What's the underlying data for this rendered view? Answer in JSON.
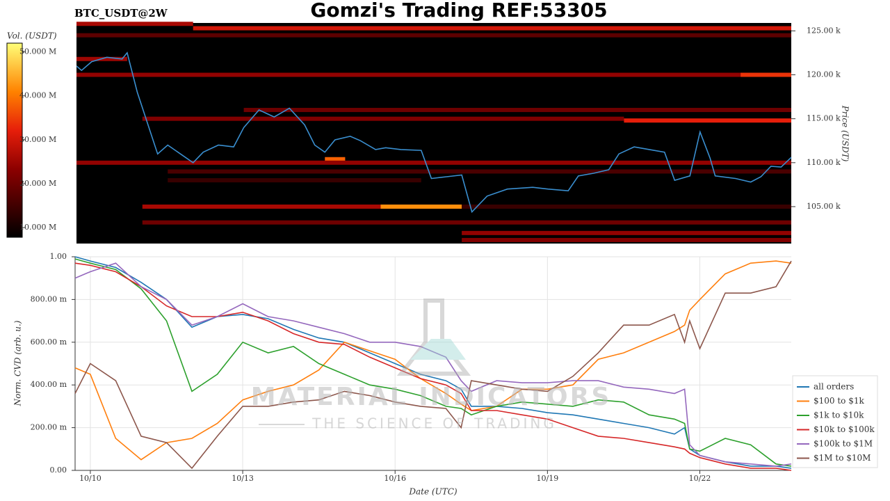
{
  "chart_data": [
    {
      "type": "heatmap",
      "title": "Gomzi's Trading REF:53305",
      "subtitle": "BTC_USDT@2W",
      "ylabel": "Price (USDT)",
      "colorbar_label": "Vol. (USDT)",
      "xlim": [
        9.7,
        23.8
      ],
      "ylim": [
        100800,
        125900
      ],
      "yticks": [
        {
          "value": 105000,
          "label": "105.00 k"
        },
        {
          "value": 110000,
          "label": "110.00 k"
        },
        {
          "value": 115000,
          "label": "115.00 k"
        },
        {
          "value": 120000,
          "label": "120.00 k"
        },
        {
          "value": 125000,
          "label": "125.00 k"
        }
      ],
      "clim": [
        7800000,
        52000000
      ],
      "cticks": [
        {
          "value": 10000000,
          "label": "10.000 M"
        },
        {
          "value": 20000000,
          "label": "20.000 M"
        },
        {
          "value": 30000000,
          "label": "30.000 M"
        },
        {
          "value": 40000000,
          "label": "40.000 M"
        },
        {
          "value": 50000000,
          "label": "50.000 M"
        }
      ],
      "bands": [
        {
          "price": 125800,
          "x": [
            9.7,
            12.0
          ],
          "volume": 26000000
        },
        {
          "price": 125300,
          "x": [
            12.0,
            23.8
          ],
          "volume": 30000000
        },
        {
          "price": 124500,
          "x": [
            9.7,
            23.8
          ],
          "volume": 18000000
        },
        {
          "price": 121800,
          "x": [
            9.7,
            10.7
          ],
          "volume": 25000000
        },
        {
          "price": 120000,
          "x": [
            9.7,
            22.8
          ],
          "volume": 24000000
        },
        {
          "price": 120000,
          "x": [
            22.8,
            23.8
          ],
          "volume": 34000000
        },
        {
          "price": 116000,
          "x": [
            13.0,
            23.8
          ],
          "volume": 20000000
        },
        {
          "price": 115000,
          "x": [
            11.0,
            20.5
          ],
          "volume": 22000000
        },
        {
          "price": 114800,
          "x": [
            20.5,
            23.8
          ],
          "volume": 32000000
        },
        {
          "price": 110400,
          "x": [
            14.6,
            15.0
          ],
          "volume": 38000000
        },
        {
          "price": 110000,
          "x": [
            9.7,
            23.8
          ],
          "volume": 24000000
        },
        {
          "price": 109000,
          "x": [
            11.5,
            23.8
          ],
          "volume": 16000000
        },
        {
          "price": 108000,
          "x": [
            11.5,
            16.5
          ],
          "volume": 14000000
        },
        {
          "price": 105000,
          "x": [
            11.0,
            15.7
          ],
          "volume": 26000000
        },
        {
          "price": 105000,
          "x": [
            15.7,
            17.3
          ],
          "volume": 42000000
        },
        {
          "price": 105000,
          "x": [
            17.3,
            23.8
          ],
          "volume": 14000000
        },
        {
          "price": 103200,
          "x": [
            11.0,
            23.8
          ],
          "volume": 20000000
        },
        {
          "price": 102000,
          "x": [
            17.3,
            23.8
          ],
          "volume": 24000000
        },
        {
          "price": 101200,
          "x": [
            17.3,
            23.8
          ],
          "volume": 22000000
        }
      ],
      "line": {
        "color": "#3a8fd0",
        "x": [
          9.7,
          9.8,
          10.0,
          10.3,
          10.6,
          10.7,
          10.9,
          11.1,
          11.3,
          11.5,
          11.8,
          12.0,
          12.2,
          12.5,
          12.8,
          13.0,
          13.3,
          13.6,
          13.9,
          14.2,
          14.4,
          14.6,
          14.8,
          15.1,
          15.3,
          15.6,
          15.8,
          16.1,
          16.5,
          16.7,
          17.0,
          17.3,
          17.5,
          17.8,
          18.2,
          18.7,
          19.0,
          19.4,
          19.6,
          19.9,
          20.2,
          20.4,
          20.7,
          21.0,
          21.3,
          21.5,
          21.8,
          22.0,
          22.2,
          22.3,
          22.7,
          23.0,
          23.2,
          23.4,
          23.6,
          23.8
        ],
        "values": [
          121000,
          120500,
          121500,
          122000,
          121800,
          122500,
          118000,
          114500,
          111000,
          112000,
          110800,
          110000,
          111200,
          112000,
          111800,
          114000,
          116000,
          115200,
          116200,
          114300,
          112000,
          111200,
          112600,
          113000,
          112500,
          111500,
          111700,
          111500,
          111400,
          108200,
          108400,
          108600,
          104400,
          106200,
          107000,
          107200,
          107000,
          106800,
          108500,
          108800,
          109200,
          111000,
          111800,
          111500,
          111200,
          108000,
          108500,
          113500,
          110500,
          108500,
          108200,
          107800,
          108400,
          109600,
          109500,
          110600
        ]
      }
    },
    {
      "type": "line",
      "xlabel": "Date (UTC)",
      "ylabel": "Norm. CVD (arb. u.)",
      "grid": true,
      "watermark": [
        "MATERIAL INDICATORS",
        "THE SCIENCE OF TRADING"
      ],
      "xlim": [
        9.7,
        23.8
      ],
      "ylim": [
        0,
        1
      ],
      "xticks": [
        {
          "value": 10,
          "label": "10/10"
        },
        {
          "value": 13,
          "label": "10/13"
        },
        {
          "value": 16,
          "label": "10/16"
        },
        {
          "value": 19,
          "label": "10/19"
        },
        {
          "value": 22,
          "label": "10/22"
        }
      ],
      "yticks": [
        {
          "value": 0,
          "label": "0.00"
        },
        {
          "value": 0.2,
          "label": "200.00 m"
        },
        {
          "value": 0.4,
          "label": "400.00 m"
        },
        {
          "value": 0.6,
          "label": "600.00 m"
        },
        {
          "value": 0.8,
          "label": "800.00 m"
        },
        {
          "value": 1,
          "label": "1.00"
        }
      ],
      "x": [
        9.7,
        10.0,
        10.5,
        11.0,
        11.5,
        12.0,
        12.5,
        13.0,
        13.5,
        14.0,
        14.5,
        15.0,
        15.5,
        16.0,
        16.5,
        17.0,
        17.3,
        17.5,
        18.0,
        18.5,
        19.0,
        19.5,
        20.0,
        20.5,
        21.0,
        21.5,
        21.7,
        21.8,
        22.0,
        22.5,
        23.0,
        23.5,
        23.8
      ],
      "series": [
        {
          "name": "all orders",
          "color": "#1f77b4",
          "values": [
            1.0,
            0.98,
            0.95,
            0.88,
            0.8,
            0.67,
            0.72,
            0.73,
            0.71,
            0.66,
            0.62,
            0.6,
            0.55,
            0.5,
            0.45,
            0.42,
            0.38,
            0.3,
            0.3,
            0.29,
            0.27,
            0.26,
            0.24,
            0.22,
            0.2,
            0.17,
            0.2,
            0.1,
            0.07,
            0.04,
            0.02,
            0.02,
            0.01
          ]
        },
        {
          "name": "$100 to $1k",
          "color": "#ff7f0e",
          "values": [
            0.48,
            0.45,
            0.15,
            0.05,
            0.13,
            0.15,
            0.22,
            0.33,
            0.37,
            0.4,
            0.47,
            0.6,
            0.56,
            0.52,
            0.43,
            0.36,
            0.31,
            0.28,
            0.3,
            0.38,
            0.38,
            0.4,
            0.52,
            0.55,
            0.6,
            0.65,
            0.68,
            0.75,
            0.8,
            0.92,
            0.97,
            0.98,
            0.97
          ]
        },
        {
          "name": "$1k to $10k",
          "color": "#2ca02c",
          "values": [
            0.99,
            0.97,
            0.94,
            0.85,
            0.7,
            0.37,
            0.45,
            0.6,
            0.55,
            0.58,
            0.5,
            0.45,
            0.4,
            0.38,
            0.35,
            0.3,
            0.29,
            0.26,
            0.3,
            0.32,
            0.31,
            0.3,
            0.33,
            0.32,
            0.26,
            0.24,
            0.22,
            0.1,
            0.09,
            0.15,
            0.12,
            0.03,
            0.02
          ]
        },
        {
          "name": "$10k to $100k",
          "color": "#d62728",
          "values": [
            0.97,
            0.96,
            0.93,
            0.86,
            0.77,
            0.72,
            0.72,
            0.74,
            0.7,
            0.64,
            0.6,
            0.59,
            0.53,
            0.48,
            0.43,
            0.4,
            0.36,
            0.28,
            0.28,
            0.26,
            0.24,
            0.2,
            0.16,
            0.15,
            0.13,
            0.11,
            0.1,
            0.08,
            0.06,
            0.03,
            0.01,
            0.01,
            0.0
          ]
        },
        {
          "name": "$100k to $1M",
          "color": "#9467bd",
          "values": [
            0.9,
            0.93,
            0.97,
            0.86,
            0.8,
            0.68,
            0.72,
            0.78,
            0.72,
            0.7,
            0.67,
            0.64,
            0.6,
            0.6,
            0.58,
            0.53,
            0.42,
            0.37,
            0.42,
            0.41,
            0.41,
            0.42,
            0.42,
            0.39,
            0.38,
            0.36,
            0.38,
            0.12,
            0.07,
            0.04,
            0.03,
            0.02,
            0.03
          ]
        },
        {
          "name": "$1M to $10M",
          "color": "#8c564b",
          "values": [
            0.36,
            0.5,
            0.42,
            0.16,
            0.13,
            0.01,
            0.16,
            0.3,
            0.3,
            0.32,
            0.33,
            0.37,
            0.35,
            0.32,
            0.3,
            0.29,
            0.2,
            0.42,
            0.4,
            0.38,
            0.37,
            0.44,
            0.55,
            0.68,
            0.68,
            0.73,
            0.6,
            0.7,
            0.57,
            0.83,
            0.83,
            0.86,
            0.98
          ]
        }
      ]
    }
  ]
}
